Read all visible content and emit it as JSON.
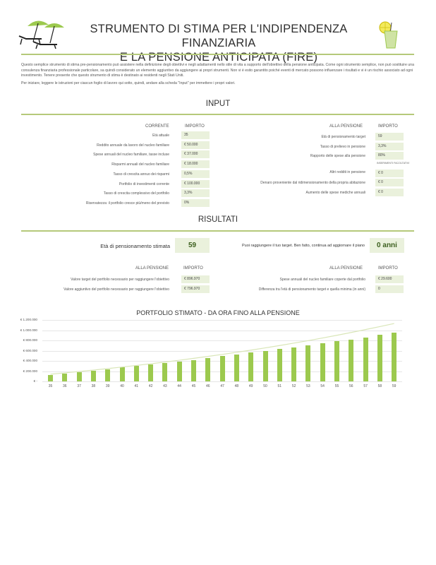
{
  "header": {
    "title_line1": "STRUMENTO DI STIMA PER L'INDIPENDENZA FINANZIARIA",
    "title_line2": "E LA PENSIONE ANTICIPATA (FIRE)"
  },
  "intro": {
    "p1": "Questo semplice strumento di stima pre-pensionamento può assistere nella definizione degli obiettivi e negli adattamenti nello stile di vita a supporto dell'obiettivo della pensione anticipata. Come ogni strumento semplice, non può sostituire una consulenza finanziaria professionale particolare, sa quindi considerato un elemento aggiuntivo da aggiungere ai propri strumenti. Non vi è esito garantito poiché eventi di mercato possono influenzare i risultati e vi è un rischio associato ad ogni investimento. Tenere presente che questo strumento di stima è destinato ai residenti negli Stati Uniti.",
    "p2": "Per iniziare, leggere le istruzioni per ciascun foglio di lavoro qui sotto, quindi, andare alla scheda \"Input\" per immettere i propri valori."
  },
  "input": {
    "heading": "INPUT",
    "left": {
      "col_label": "CORRENTE",
      "col_value": "IMPORTO",
      "rows": [
        {
          "label": "Età attuale",
          "value": "35"
        },
        {
          "label": "Reddito annuale da lavoro del nucleo familiare",
          "value": "€ 50.000"
        },
        {
          "label": "Spese annuali del nucleo familiare, tasse incluse",
          "value": "€ 37.000"
        },
        {
          "label": "Risparmi annuali del nucleo familiare",
          "value": "€ 18.000"
        },
        {
          "label": "Tasso di crescita annuo dei risparmi",
          "value": "0,5%"
        },
        {
          "label": "Portfolio di investimenti corrente",
          "value": "€ 100.000"
        },
        {
          "label": "Tasso di crescita complessivo del portfolio",
          "value": "3,3%"
        },
        {
          "label": "Riservatezza: il portfolio cresce più/meno del previsto",
          "value": "0%"
        }
      ]
    },
    "right": {
      "col_label": "ALLA PENSIONE",
      "col_value": "IMPORTO",
      "rows": [
        {
          "label": "Età di pensionamento target",
          "value": "59"
        },
        {
          "label": "Tasso di prelievo in pensione",
          "value": "3,3%"
        },
        {
          "label": "Rapporto delle spese alla pensione",
          "value": "80%"
        },
        {
          "label": "Altri redditi in pensione",
          "note": "INSERIMENTI FACOLTATIVI",
          "value": "€ 0"
        },
        {
          "label": "Denaro proveniente dal ridimensionamento della propria abitazione",
          "value": "€ 0"
        },
        {
          "label": "Aumento delle spese mediche annuali",
          "value": "€ 0"
        }
      ]
    }
  },
  "results": {
    "heading": "RISULTATI",
    "retire_age_label": "Età di pensionamento stimata",
    "retire_age_value": "59",
    "target_message": "Puoi raggiungere il tuo target. Ben fatto, continua ad aggiornare il piano",
    "years_value": "0 anni",
    "left": {
      "col_label": "ALLA PENSIONE",
      "col_value": "IMPORTO",
      "rows": [
        {
          "label": "Valore target del portfolio necessario per raggiungere l'obiettivo",
          "value": "€ 896.970"
        },
        {
          "label": "Valore aggiuntivo del portfolio necessario per raggiungere l'obiettivo",
          "value": "€ 796.970"
        }
      ]
    },
    "right": {
      "col_label": "ALLA PENSIONE",
      "col_value": "IMPORTO",
      "rows": [
        {
          "label": "Spese annuali del nucleo familiare coperte dal portfolio",
          "value": "€ 29.600"
        },
        {
          "label": "Differenza tra l'età di pensionamento target e quella minima (in anni)",
          "value": "0"
        }
      ]
    }
  },
  "chart_data": {
    "type": "bar",
    "title": "PORTFOLIO STIMATO - DA ORA FINO ALLA PENSIONE",
    "categories": [
      "35",
      "36",
      "37",
      "38",
      "39",
      "40",
      "41",
      "42",
      "43",
      "44",
      "45",
      "46",
      "47",
      "48",
      "49",
      "50",
      "51",
      "52",
      "53",
      "54",
      "55",
      "56",
      "57",
      "58",
      "59"
    ],
    "series": [
      {
        "values": [
          120000,
          150000,
          180000,
          210000,
          240000,
          270000,
          300000,
          330000,
          360000,
          390000,
          420000,
          455000,
          490000,
          525000,
          560000,
          595000,
          630000,
          665000,
          700000,
          740000,
          780000,
          820000,
          860000,
          905000,
          950000
        ]
      },
      {
        "type": "line",
        "values": [
          140000,
          166000,
          193000,
          221000,
          250000,
          280000,
          311000,
          344000,
          378000,
          413000,
          450000,
          488000,
          527000,
          568000,
          610000,
          654000,
          700000,
          747000,
          796000,
          847000,
          900000,
          955000,
          1012000,
          1070000,
          1130000
        ]
      }
    ],
    "yticks": [
      "€ 1.200.000",
      "€ 1.000.000",
      "€ 800.000",
      "€ 600.000",
      "€ 400.000",
      "€ 200.000",
      "€ -"
    ],
    "ylim": [
      0,
      1200000
    ],
    "colors": {
      "bar": "#9cc94e",
      "line": "#d9e6b8"
    }
  }
}
